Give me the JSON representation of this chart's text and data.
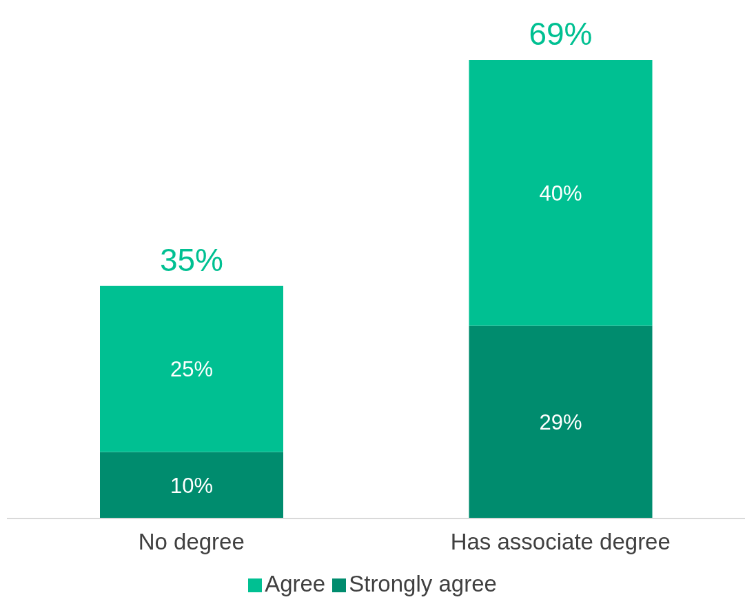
{
  "chart_data": {
    "type": "bar",
    "stacked": true,
    "categories": [
      "No degree",
      "Has associate degree"
    ],
    "series": [
      {
        "name": "Strongly agree",
        "color": "#008c6e",
        "values": [
          10,
          29
        ],
        "value_labels": [
          "10%",
          "29%"
        ]
      },
      {
        "name": "Agree",
        "color": "#00c092",
        "values": [
          25,
          40
        ],
        "value_labels": [
          "25%",
          "40%"
        ]
      }
    ],
    "totals": [
      "35%",
      "69%"
    ],
    "legend": "bottom",
    "grid": false
  }
}
